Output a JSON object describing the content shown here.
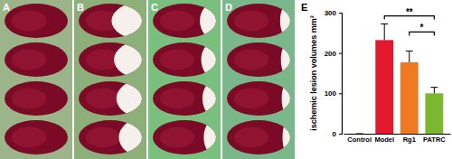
{
  "figure": {
    "panel_labels": [
      "A",
      "B",
      "C",
      "D",
      "E"
    ]
  },
  "chart_data": {
    "type": "bar",
    "y_label": "ischemic lesion volumes mm³",
    "categories": [
      "Control",
      "Model",
      "Rg1",
      "PATRC"
    ],
    "values": [
      0,
      232,
      177,
      100
    ],
    "errors": [
      0,
      40,
      28,
      15
    ],
    "colors": [
      "#1f3d99",
      "#e3182d",
      "#f07a22",
      "#7cb82f"
    ],
    "ylim": [
      0,
      300
    ],
    "yticks": [
      0,
      100,
      200,
      300
    ],
    "annotations": [
      {
        "label": "**",
        "start": "Model",
        "end": "PATRC",
        "y": 292
      },
      {
        "label": "*",
        "start": "Rg1",
        "end": "PATRC",
        "y": 252
      }
    ]
  }
}
